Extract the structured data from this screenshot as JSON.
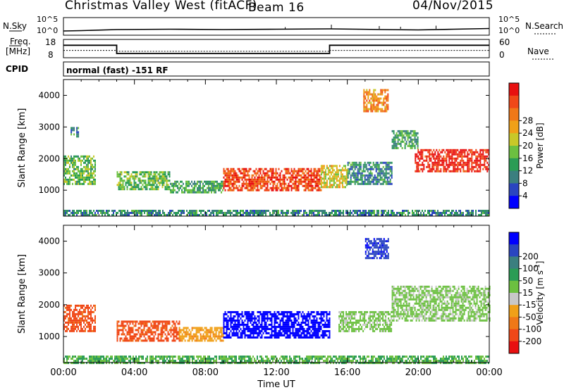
{
  "title": {
    "station": "Christmas Valley West (fitACF)",
    "beam": "Beam 16",
    "date": "04/Nov/2015"
  },
  "header": {
    "nsky_label": "N.Sky",
    "nsky_ticks": [
      "10^5",
      "10^0"
    ],
    "nsearch_label": "N.Search",
    "nsearch_ticks": [
      "10^5",
      "10^0"
    ],
    "freq_label_1": "Freq.",
    "freq_label_2": "[MHz]",
    "freq_ticks": [
      "18",
      "8"
    ],
    "nave_label": "Nave",
    "nave_ticks": [
      "60",
      "0"
    ],
    "cpid_label": "CPID",
    "cpid_value": "normal (fast) -151 RF"
  },
  "chart_data": [
    {
      "type": "line",
      "id": "noise",
      "series": [
        {
          "name": "N.Sky",
          "x": [
            0,
            1,
            3,
            6,
            9,
            12,
            15,
            16.6,
            18,
            20,
            22,
            24
          ],
          "y": [
            1.2,
            1.3,
            1.6,
            1.7,
            1.6,
            1.7,
            1.8,
            1.7,
            1.6,
            1.5,
            1.7,
            1.9
          ]
        },
        {
          "name": "N.Search",
          "x": [
            0,
            24
          ],
          "y": [
            0,
            0
          ]
        }
      ],
      "ylim": [
        0,
        5
      ],
      "xlim": [
        0,
        24
      ]
    },
    {
      "type": "line",
      "id": "freq_nave",
      "series": [
        {
          "name": "Freq",
          "x": [
            0,
            3,
            3,
            15,
            15,
            24
          ],
          "y": [
            14.8,
            14.8,
            10.3,
            10.3,
            14.8,
            14.8
          ]
        },
        {
          "name": "Nave",
          "x": [
            0,
            3,
            3,
            15,
            15,
            24
          ],
          "y": [
            24,
            24,
            21,
            21,
            24,
            24
          ]
        }
      ],
      "ylim": [
        8,
        18
      ],
      "y2lim": [
        0,
        60
      ]
    },
    {
      "type": "heatmap",
      "id": "power",
      "title": "",
      "ylabel": "Slant Range [km]",
      "xlabel": "",
      "xlim": [
        0,
        24
      ],
      "ylim": [
        180,
        4500
      ],
      "xticks": [
        0,
        4,
        8,
        12,
        16,
        20,
        24
      ],
      "yticks": [
        1000,
        2000,
        3000,
        4000
      ],
      "colorbar": {
        "label": "Power [dB]",
        "ticks": [
          "4",
          "8",
          "12",
          "16",
          "20",
          "24",
          "28"
        ],
        "colors": [
          "#0000ff",
          "#2a45c0",
          "#3b7f7f",
          "#2a9c55",
          "#6cc040",
          "#c8c828",
          "#f0a018",
          "#f07818",
          "#f04818",
          "#e81010"
        ]
      },
      "regions": [
        {
          "t": [
            0,
            1.8
          ],
          "r": [
            1200,
            2100
          ],
          "value": 14
        },
        {
          "t": [
            0.4,
            0.8
          ],
          "r": [
            2700,
            3000
          ],
          "value": 10
        },
        {
          "t": [
            3.0,
            6.0
          ],
          "r": [
            1000,
            1600
          ],
          "value": 14
        },
        {
          "t": [
            6.0,
            9.0
          ],
          "r": [
            900,
            1300
          ],
          "value": 12
        },
        {
          "t": [
            9.0,
            14.5
          ],
          "r": [
            1000,
            1700
          ],
          "value": 26
        },
        {
          "t": [
            14.5,
            16.0
          ],
          "r": [
            1100,
            1800
          ],
          "value": 18
        },
        {
          "t": [
            16.0,
            18.5
          ],
          "r": [
            1200,
            1900
          ],
          "value": 10
        },
        {
          "t": [
            16.9,
            18.3
          ],
          "r": [
            3500,
            4200
          ],
          "value": 22
        },
        {
          "t": [
            18.5,
            20.0
          ],
          "r": [
            2300,
            2900
          ],
          "value": 12
        },
        {
          "t": [
            19.8,
            24.0
          ],
          "r": [
            1600,
            2300
          ],
          "value": 28
        },
        {
          "t": [
            0,
            24
          ],
          "r": [
            200,
            380
          ],
          "value": 10
        }
      ]
    },
    {
      "type": "heatmap",
      "id": "velocity",
      "title": "",
      "ylabel": "Slant Range [km]",
      "xlabel": "Time UT",
      "xlim": [
        0,
        24
      ],
      "ylim": [
        180,
        4500
      ],
      "xticks": [
        0,
        4,
        8,
        12,
        16,
        20,
        24
      ],
      "xticklabels": [
        "00:00",
        "04:00",
        "08:00",
        "12:00",
        "16:00",
        "20:00",
        "00:00"
      ],
      "yticks": [
        1000,
        2000,
        3000,
        4000
      ],
      "colorbar": {
        "label": "Velocity [m s",
        "label_sup": "-1",
        "label_end": "]",
        "ticks": [
          "-200",
          "-100",
          "-50",
          "-15",
          "15",
          "50",
          "100",
          "200"
        ],
        "colors": [
          "#e81010",
          "#f04818",
          "#f07818",
          "#f0a018",
          "#c8c8c8",
          "#6cc040",
          "#2a9c55",
          "#3b7f7f",
          "#2a45c0",
          "#0000ff"
        ]
      },
      "regions": [
        {
          "t": [
            0,
            1.8
          ],
          "r": [
            1200,
            2000
          ],
          "value": -150
        },
        {
          "t": [
            3.0,
            6.5
          ],
          "r": [
            900,
            1500
          ],
          "value": -150
        },
        {
          "t": [
            6.5,
            9.0
          ],
          "r": [
            900,
            1300
          ],
          "value": -80
        },
        {
          "t": [
            9.0,
            15.0
          ],
          "r": [
            1000,
            1800
          ],
          "value": 180
        },
        {
          "t": [
            15.5,
            18.5
          ],
          "r": [
            1200,
            1800
          ],
          "value": 0
        },
        {
          "t": [
            17.0,
            18.3
          ],
          "r": [
            3500,
            4100
          ],
          "value": 150
        },
        {
          "t": [
            18.5,
            24.0
          ],
          "r": [
            1500,
            2600
          ],
          "value": 0
        },
        {
          "t": [
            0,
            24
          ],
          "r": [
            200,
            400
          ],
          "value": 30
        }
      ]
    }
  ],
  "colors": {
    "axis": "#000000",
    "background": "#ffffff"
  }
}
